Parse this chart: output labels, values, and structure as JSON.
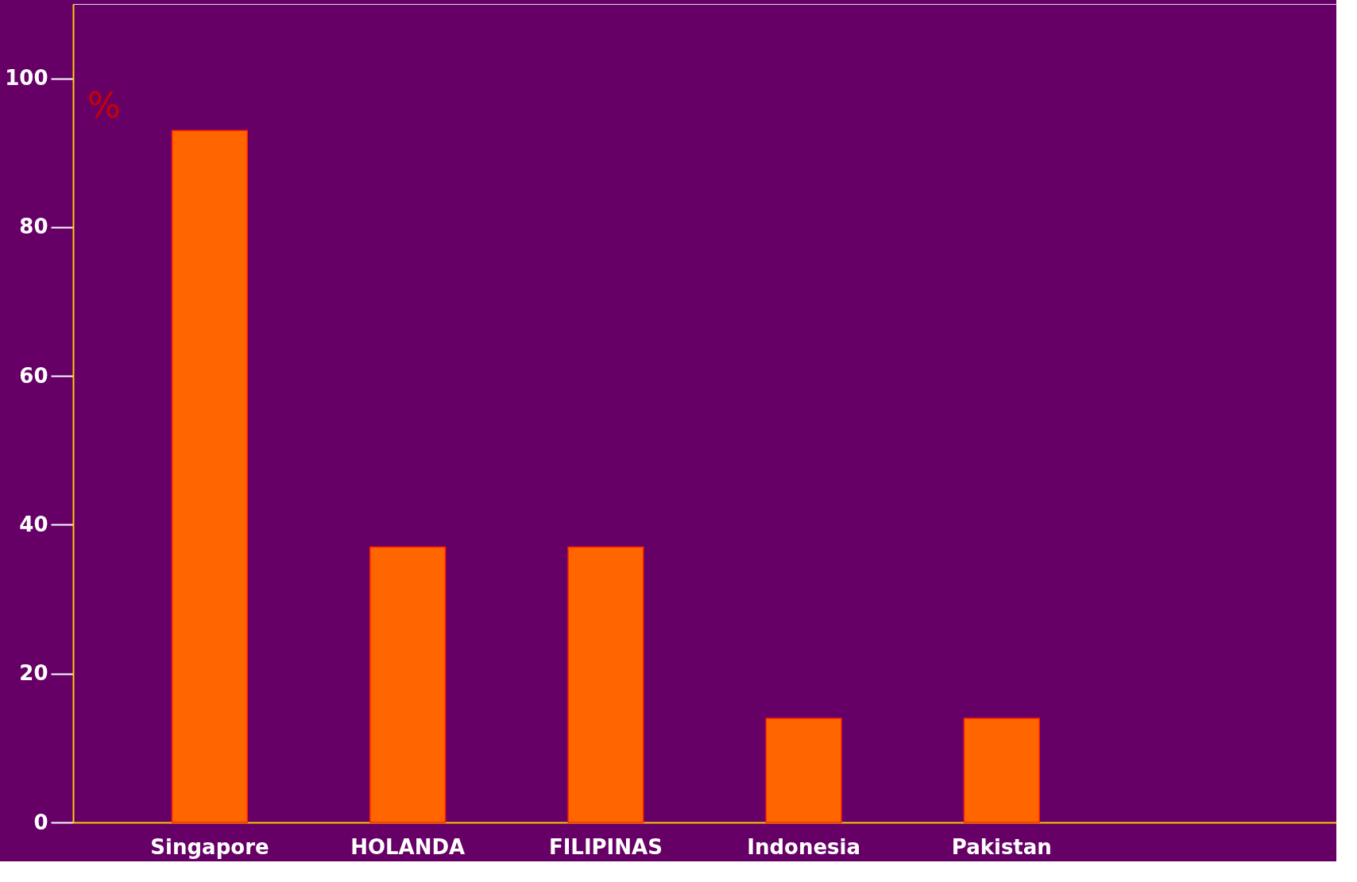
{
  "chart_data": {
    "type": "bar",
    "categories": [
      "Singapore",
      "HOLANDA",
      "FILIPINAS",
      "Indonesia",
      "Pakistan"
    ],
    "values": [
      93,
      37,
      37,
      14,
      14
    ],
    "color": "#ff6600",
    "ylim": [
      0,
      110
    ],
    "yticks": [
      0,
      20,
      40,
      60,
      80,
      100
    ],
    "grid": false,
    "annotations": [
      "%"
    ]
  }
}
